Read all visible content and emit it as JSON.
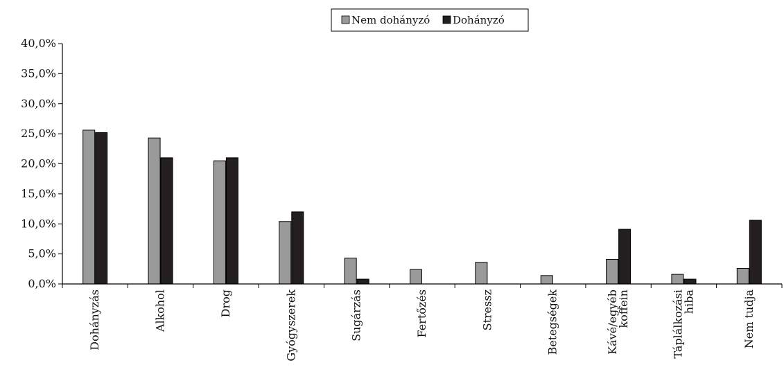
{
  "chart_data": {
    "type": "bar",
    "categories": [
      [
        "Dohányzás"
      ],
      [
        "Alkohol"
      ],
      [
        "Drog"
      ],
      [
        "Gyógyszerek"
      ],
      [
        "Sugárzás"
      ],
      [
        "Fertőzés"
      ],
      [
        "Stressz"
      ],
      [
        "Betegségek"
      ],
      [
        "Kávé/egyéb",
        "koffein"
      ],
      [
        "Táplálkozási",
        "hiba"
      ],
      [
        "Nem tudja"
      ]
    ],
    "series": [
      {
        "name": "Nem dohányzó",
        "color": "#9a9a9a",
        "values": [
          25.6,
          24.3,
          20.5,
          10.4,
          4.3,
          2.4,
          3.6,
          1.4,
          4.1,
          1.6,
          2.6
        ]
      },
      {
        "name": "Dohányzó",
        "color": "#231f20",
        "values": [
          25.2,
          21.0,
          21.0,
          12.0,
          0.8,
          0.0,
          0.0,
          0.0,
          9.1,
          0.8,
          10.6
        ]
      }
    ],
    "ylim": [
      0,
      40
    ],
    "yticks": [
      "0,0%",
      "5,0%",
      "10,0%",
      "15,0%",
      "20,0%",
      "25,0%",
      "30,0%",
      "35,0%",
      "40,0%"
    ],
    "grid": false,
    "legend_position": "top-center"
  }
}
